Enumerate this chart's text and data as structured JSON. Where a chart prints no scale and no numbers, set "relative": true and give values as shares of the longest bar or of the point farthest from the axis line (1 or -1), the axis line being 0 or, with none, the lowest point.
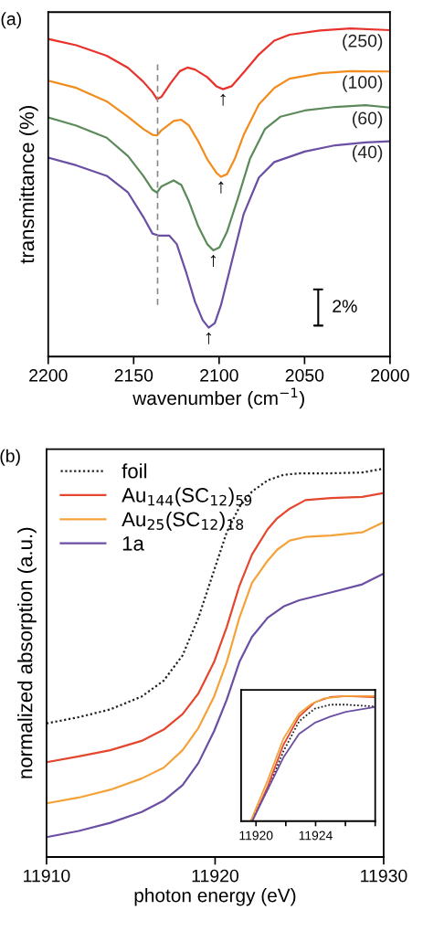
{
  "chart_data": [
    {
      "type": "line",
      "title": "(a)",
      "xlabel": "wavenumber (cm$^{−1}$)",
      "ylabel": "transmittance (%)",
      "relative": true,
      "xlim": [
        2200,
        2000
      ],
      "xticks": [
        2200,
        2150,
        2100,
        2050,
        2000
      ],
      "tick_labels": "x",
      "grid": false,
      "legend": false,
      "series": [
        {
          "name": "(250)",
          "color": "#e8322c",
          "x": [
            2200,
            2183.6,
            2165.8,
            2153.3,
            2144.4,
            2139.0,
            2136.4,
            2133.7,
            2128.4,
            2123.0,
            2118.5,
            2114.1,
            2107.0,
            2101.6,
            2097.7,
            2092.7,
            2085.6,
            2076.7,
            2067.7,
            2058.8,
            2041.0,
            2023.2,
            2000
          ],
          "values": [
            0.968,
            0.949,
            0.917,
            0.88,
            0.838,
            0.806,
            0.785,
            0.792,
            0.833,
            0.87,
            0.881,
            0.875,
            0.852,
            0.824,
            0.815,
            0.824,
            0.866,
            0.921,
            0.963,
            0.981,
            0.994,
            1,
            0.995
          ]
        },
        {
          "name": "(100)",
          "color": "#f28c1c",
          "x": [
            2200,
            2183.6,
            2165.8,
            2153.3,
            2144.4,
            2139.0,
            2136.4,
            2133.7,
            2126.6,
            2122.1,
            2117.6,
            2112.3,
            2107.0,
            2101.6,
            2098.9,
            2095.4,
            2090.9,
            2085.6,
            2076.7,
            2067.7,
            2058.8,
            2041.0,
            2023.2,
            2000
          ],
          "values": [
            0.841,
            0.819,
            0.778,
            0.731,
            0.694,
            0.676,
            0.674,
            0.69,
            0.718,
            0.722,
            0.704,
            0.657,
            0.602,
            0.56,
            0.548,
            0.556,
            0.602,
            0.676,
            0.769,
            0.819,
            0.847,
            0.864,
            0.87,
            0.869
          ]
        },
        {
          "name": "(60)",
          "color": "#5c8a5a",
          "x": [
            2200,
            2183.6,
            2165.8,
            2153.3,
            2144.4,
            2139.0,
            2136.4,
            2133.7,
            2126.6,
            2122.1,
            2117.6,
            2112.3,
            2107.0,
            2103.4,
            2099.8,
            2095.4,
            2089.1,
            2082.0,
            2073.1,
            2064.2,
            2049.9,
            2032.1,
            2014.3,
            2000
          ],
          "values": [
            0.729,
            0.704,
            0.667,
            0.611,
            0.551,
            0.509,
            0.5,
            0.519,
            0.537,
            0.523,
            0.472,
            0.398,
            0.343,
            0.324,
            0.333,
            0.38,
            0.481,
            0.602,
            0.694,
            0.731,
            0.75,
            0.761,
            0.766,
            0.759
          ]
        },
        {
          "name": "(40)",
          "color": "#6a4fa3",
          "x": [
            2200,
            2183.6,
            2165.8,
            2153.3,
            2144.4,
            2139.0,
            2135.5,
            2129.2,
            2124.8,
            2119.4,
            2114.1,
            2109.6,
            2106.1,
            2102.5,
            2098.9,
            2092.7,
            2085.6,
            2076.7,
            2067.7,
            2049.9,
            2032.1,
            2014.3,
            2000
          ],
          "values": [
            0.606,
            0.583,
            0.551,
            0.5,
            0.426,
            0.375,
            0.369,
            0.369,
            0.343,
            0.259,
            0.167,
            0.111,
            0.088,
            0.102,
            0.157,
            0.287,
            0.435,
            0.546,
            0.593,
            0.625,
            0.644,
            0.653,
            0.656
          ]
        }
      ],
      "ref_lines": [
        {
          "axis": "x",
          "value": 2136,
          "label": null,
          "color": "#888888",
          "line_style": "dashed"
        }
      ],
      "annotations": [
        {
          "text": "↑",
          "x": 2097.7,
          "y": 0.815
        },
        {
          "text": "↑",
          "x": 2098.9,
          "y": 0.548
        },
        {
          "text": "↑",
          "x": 2103.4,
          "y": 0.324
        },
        {
          "text": "↑",
          "x": 2106.1,
          "y": 0.088
        },
        "2%"
      ]
    },
    {
      "type": "line",
      "title": "(b)",
      "xlabel": "photon energy (eV)",
      "ylabel": "normalized absorption (a.u.)",
      "relative": true,
      "xlim": [
        11910,
        11930
      ],
      "xticks": [
        11910,
        11920,
        11930
      ],
      "tick_labels": "x",
      "grid": false,
      "legend": "top left",
      "series": [
        {
          "name": "foil",
          "color": "#222222",
          "line_style": "dotted",
          "x": [
            11910,
            11911.91,
            11913.78,
            11915.64,
            11916.95,
            11918.07,
            11919.01,
            11919.94,
            11920.69,
            11921.44,
            11922.19,
            11923.12,
            11924.06,
            11924.99,
            11926.86,
            11928.73,
            11930
          ],
          "values": [
            0.344,
            0.36,
            0.38,
            0.413,
            0.454,
            0.519,
            0.616,
            0.738,
            0.836,
            0.901,
            0.941,
            0.97,
            0.984,
            0.988,
            0.988,
            0.99,
            1
          ]
        },
        {
          "name": "Au$_{144}$(SC$_{12}$)$_{59}$",
          "color": "#e4472d",
          "x": [
            11910,
            11911.91,
            11913.78,
            11915.64,
            11916.95,
            11918.07,
            11919.01,
            11919.94,
            11920.69,
            11921.44,
            11922.19,
            11923.12,
            11923.68,
            11924.43,
            11925.36,
            11926.86,
            11928.73,
            11930
          ],
          "values": [
            0.244,
            0.259,
            0.275,
            0.299,
            0.328,
            0.368,
            0.421,
            0.502,
            0.592,
            0.698,
            0.779,
            0.844,
            0.872,
            0.897,
            0.919,
            0.924,
            0.927,
            0.937
          ]
        },
        {
          "name": "Au$_{25}$(SC$_{12}$)$_{18}$",
          "color": "#f4a33a",
          "x": [
            11910,
            11911.91,
            11913.78,
            11915.64,
            11916.95,
            11918.07,
            11919.01,
            11919.94,
            11920.69,
            11921.44,
            11922.19,
            11923.12,
            11923.68,
            11924.43,
            11925.36,
            11926.86,
            11927.79,
            11928.73,
            11930
          ],
          "values": [
            0.138,
            0.153,
            0.173,
            0.202,
            0.23,
            0.275,
            0.332,
            0.413,
            0.502,
            0.616,
            0.706,
            0.763,
            0.791,
            0.815,
            0.824,
            0.828,
            0.832,
            0.836,
            0.862
          ]
        },
        {
          "name": "1a",
          "color": "#6a4fa3",
          "x": [
            11910,
            11911.91,
            11913.78,
            11915.64,
            11916.95,
            11918.07,
            11919.01,
            11919.94,
            11920.69,
            11921.44,
            11922.19,
            11923.12,
            11924.06,
            11924.99,
            11926.86,
            11928.73,
            11930
          ],
          "values": [
            0.051,
            0.067,
            0.088,
            0.116,
            0.145,
            0.185,
            0.242,
            0.324,
            0.405,
            0.502,
            0.567,
            0.616,
            0.645,
            0.661,
            0.681,
            0.702,
            0.73
          ]
        }
      ]
    },
    {
      "type": "line",
      "relative": true,
      "xlim": [
        11919,
        11928
      ],
      "xticks": [
        11920,
        {
          "value": 11922,
          "label": null
        },
        11924,
        {
          "value": 11926,
          "label": null
        },
        {
          "value": 11928,
          "label": null
        }
      ],
      "tick_labels": "x",
      "grid": false,
      "legend": false,
      "series": [
        {
          "color": "#222222",
          "line_style": "dotted",
          "x": [
            11919.64,
            11920.8,
            11921.84,
            11922.89,
            11923.94,
            11924.98,
            11926.03,
            11927.92
          ],
          "values": [
            0,
            0.257,
            0.559,
            0.798,
            0.899,
            0.932,
            0.932,
            0.917
          ]
        },
        {
          "color": "#e4472d",
          "x": [
            11919.75,
            11920.8,
            11921.84,
            11922.89,
            11923.94,
            11924.98,
            11926.03,
            11927.92
          ],
          "values": [
            0,
            0.282,
            0.61,
            0.836,
            0.95,
            0.992,
            1,
            0.992
          ]
        },
        {
          "color": "#f4a33a",
          "x": [
            11919.64,
            11920.8,
            11921.84,
            11922.89,
            11923.73,
            11924.57,
            11926.03,
            11927.92
          ],
          "values": [
            0,
            0.332,
            0.66,
            0.861,
            0.937,
            0.982,
            1,
            1
          ]
        },
        {
          "color": "#6a4fa3",
          "x": [
            11919.75,
            11920.8,
            11921.84,
            11922.89,
            11923.94,
            11924.98,
            11926.03,
            11927.92
          ],
          "values": [
            0,
            0.257,
            0.509,
            0.698,
            0.786,
            0.836,
            0.874,
            0.912
          ]
        }
      ]
    }
  ]
}
